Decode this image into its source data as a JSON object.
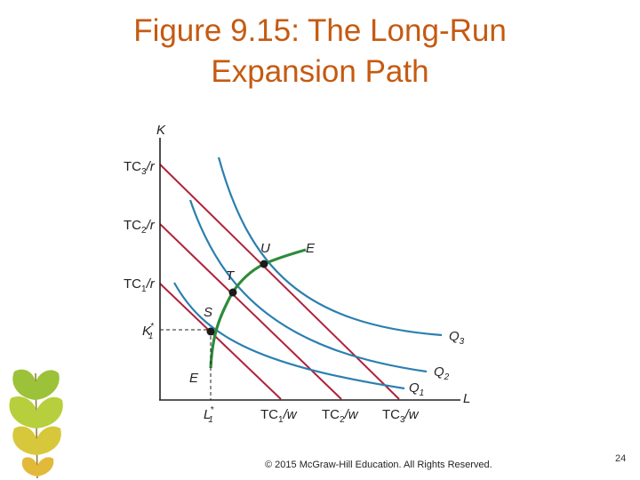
{
  "title": {
    "line1": "Figure 9.15: The Long-Run",
    "line2": "Expansion Path",
    "color": "#c55a11"
  },
  "diagram": {
    "axis_y_label": "K",
    "axis_x_label": "L",
    "y_ticks": {
      "tc3_r": {
        "main": "TC",
        "sub": "3",
        "tail": "/r"
      },
      "tc2_r": {
        "main": "TC",
        "sub": "2",
        "tail": "/r"
      },
      "tc1_r": {
        "main": "TC",
        "sub": "1",
        "tail": "/r"
      },
      "k1_star": {
        "main": "K",
        "sub": "1",
        "sup": "*"
      }
    },
    "x_ticks": {
      "l1_star": {
        "main": "L",
        "sub": "1",
        "sup": "*"
      },
      "tc1_w": {
        "main": "TC",
        "sub": "1",
        "tail": "/w"
      },
      "tc2_w": {
        "main": "TC",
        "sub": "2",
        "tail": "/w"
      },
      "tc3_w": {
        "main": "TC",
        "sub": "3",
        "tail": "/w"
      }
    },
    "points": {
      "s": "S",
      "t": "T",
      "u": "U"
    },
    "expansion_path": {
      "top": "E",
      "bottom": "E"
    },
    "isoquants": {
      "q1": {
        "main": "Q",
        "sub": "1"
      },
      "q2": {
        "main": "Q",
        "sub": "2"
      },
      "q3": {
        "main": "Q",
        "sub": "3"
      }
    },
    "colors": {
      "isoquant": "#2b7fb0",
      "isocost": "#b0223a",
      "expansion_path": "#2e8b3a",
      "axes": "#222222"
    }
  },
  "footer": {
    "copyright": "© 2015 McGraw-Hill Education. All Rights Reserved.",
    "page_number": "24"
  }
}
